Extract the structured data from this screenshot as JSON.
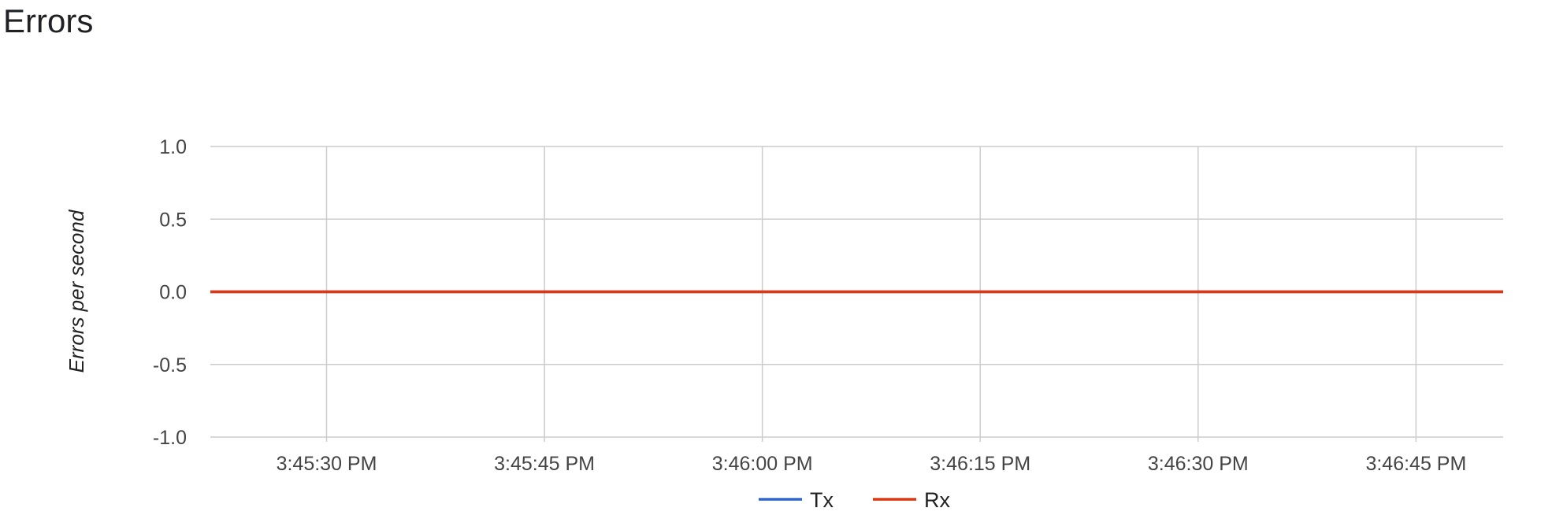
{
  "page": {
    "title": "Errors"
  },
  "chart_data": {
    "type": "line",
    "ylabel": "Errors per second",
    "xlabel": "",
    "ylim": [
      -1.0,
      1.0
    ],
    "yticks": [
      "1.0",
      "0.5",
      "0.0",
      "-0.5",
      "-1.0"
    ],
    "ytick_values": [
      1.0,
      0.5,
      0.0,
      -0.5,
      -1.0
    ],
    "xticks": [
      "3:45:30 PM",
      "3:45:45 PM",
      "3:46:00 PM",
      "3:46:15 PM",
      "3:46:30 PM",
      "3:46:45 PM"
    ],
    "x_start": "3:45:22 PM",
    "x_end": "3:46:51 PM",
    "grid": true,
    "legend_position": "bottom",
    "series": [
      {
        "name": "Tx",
        "color": "#3366cc",
        "values": [
          0,
          0
        ]
      },
      {
        "name": "Rx",
        "color": "#dc3912",
        "values": [
          0,
          0
        ]
      }
    ]
  }
}
